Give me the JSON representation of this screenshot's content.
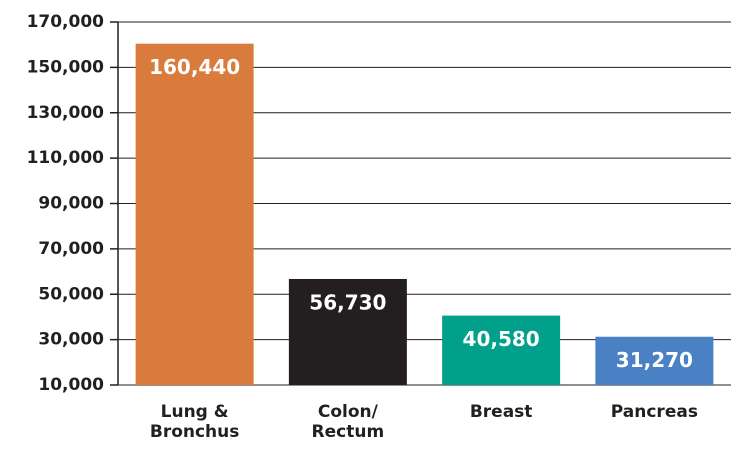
{
  "chart_data": {
    "type": "bar",
    "categories": [
      "Lung &\nBronchus",
      "Colon/\nRectum",
      "Breast",
      "Pancreas"
    ],
    "values": [
      160440,
      56730,
      40580,
      31270
    ],
    "value_labels": [
      "160,440",
      "56,730",
      "40,580",
      "31,270"
    ],
    "colors": [
      "#d97b3c",
      "#231f20",
      "#00a08a",
      "#4a80c4"
    ],
    "ylim": [
      10000,
      170000
    ],
    "yticks": [
      {
        "value": 10000,
        "label": "10,000"
      },
      {
        "value": 30000,
        "label": "30,000"
      },
      {
        "value": 50000,
        "label": "50,000"
      },
      {
        "value": 70000,
        "label": "70,000"
      },
      {
        "value": 90000,
        "label": "90,000"
      },
      {
        "value": 110000,
        "label": "110,000"
      },
      {
        "value": 130000,
        "label": "130,000"
      },
      {
        "value": 150000,
        "label": "150,000"
      },
      {
        "value": 170000,
        "label": "170,000"
      }
    ],
    "grid": true
  }
}
